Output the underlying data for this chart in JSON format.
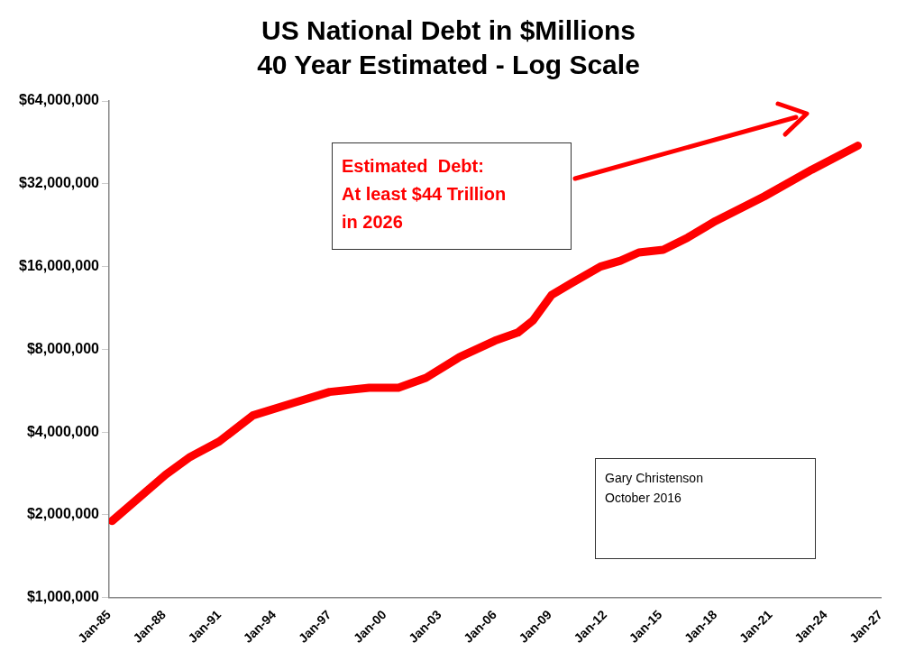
{
  "chart_data": {
    "type": "line",
    "title": "US National Debt in $Millions",
    "subtitle": "40 Year Estimated - Log Scale",
    "x": [
      "1985-03",
      "1988-02",
      "1989-06",
      "1991-01",
      "1992-11",
      "1995-01",
      "1997-01",
      "1999-03",
      "2000-10",
      "2002-04",
      "2004-02",
      "2006-01",
      "2007-04",
      "2008-02",
      "2009-02",
      "2010-03",
      "2011-10",
      "2012-11",
      "2013-11",
      "2015-03",
      "2016-07",
      "2018-01",
      "2020-09",
      "2023-04",
      "2025-10"
    ],
    "series": [
      {
        "color": "#ff0000",
        "values": [
          1900000,
          2800000,
          3250000,
          3700000,
          4600000,
          5100000,
          5600000,
          5800000,
          5800000,
          6300000,
          7500000,
          8600000,
          9200000,
          10200000,
          12600000,
          13900000,
          16000000,
          16800000,
          18000000,
          18400000,
          20400000,
          23400000,
          28800000,
          36000000,
          44000000
        ]
      }
    ],
    "log": "y",
    "ylim": [
      1000000,
      64000000
    ],
    "yticks": [
      {
        "value": 1000000,
        "label": "$1,000,000"
      },
      {
        "value": 2000000,
        "label": "$2,000,000"
      },
      {
        "value": 4000000,
        "label": "$4,000,000"
      },
      {
        "value": 8000000,
        "label": "$8,000,000"
      },
      {
        "value": 16000000,
        "label": "$16,000,000"
      },
      {
        "value": 32000000,
        "label": "$32,000,000"
      },
      {
        "value": 64000000,
        "label": "$64,000,000"
      }
    ],
    "xlim": [
      "1985-01",
      "2027-01"
    ],
    "xticks": [
      {
        "value": "1985-01",
        "label": "Jan-85"
      },
      {
        "value": "1988-01",
        "label": "Jan-88"
      },
      {
        "value": "1991-01",
        "label": "Jan-91"
      },
      {
        "value": "1994-01",
        "label": "Jan-94"
      },
      {
        "value": "1997-01",
        "label": "Jan-97"
      },
      {
        "value": "2000-01",
        "label": "Jan-00"
      },
      {
        "value": "2003-01",
        "label": "Jan-03"
      },
      {
        "value": "2006-01",
        "label": "Jan-06"
      },
      {
        "value": "2009-01",
        "label": "Jan-09"
      },
      {
        "value": "2012-01",
        "label": "Jan-12"
      },
      {
        "value": "2015-01",
        "label": "Jan-15"
      },
      {
        "value": "2018-01",
        "label": "Jan-18"
      },
      {
        "value": "2021-01",
        "label": "Jan-21"
      },
      {
        "value": "2024-01",
        "label": "Jan-24"
      },
      {
        "value": "2027-01",
        "label": "Jan-27"
      }
    ],
    "grid": false,
    "legend": false,
    "marker": "none",
    "line_style": "solid",
    "annotations": [
      "Estimated  Debt:\nAt least $44 Trillion\nin 2026",
      "Gary Christenson\nOctober 2016"
    ]
  }
}
